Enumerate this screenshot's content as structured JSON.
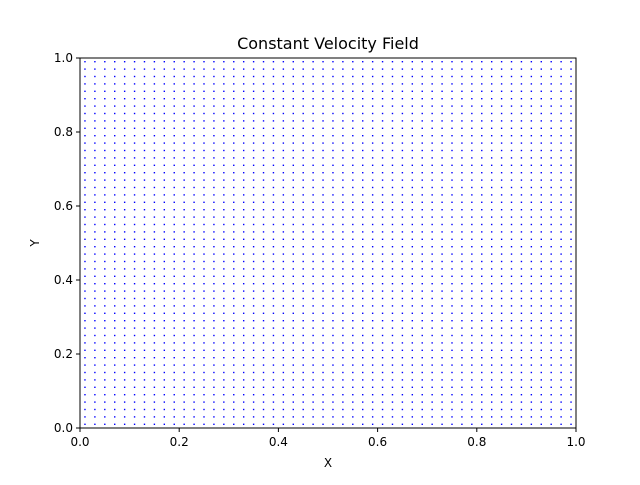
{
  "chart_data": {
    "type": "quiver",
    "title": "Constant Velocity Field",
    "xlabel": "X",
    "ylabel": "Y",
    "xlim": [
      0.0,
      1.0
    ],
    "ylim": [
      0.0,
      1.0
    ],
    "xticks": [
      "0.0",
      "0.2",
      "0.4",
      "0.6",
      "0.8",
      "1.0"
    ],
    "yticks": [
      "0.0",
      "0.2",
      "0.4",
      "0.6",
      "0.8",
      "1.0"
    ],
    "grid": false,
    "legend": "none",
    "series": [
      {
        "kind": "uniform-grid",
        "x_start": 0.01,
        "x_end": 0.99,
        "y_start": 0.01,
        "y_end": 0.99,
        "count_per_axis": 50,
        "vector": [
          0,
          0
        ],
        "color": "#0000ff"
      }
    ]
  }
}
